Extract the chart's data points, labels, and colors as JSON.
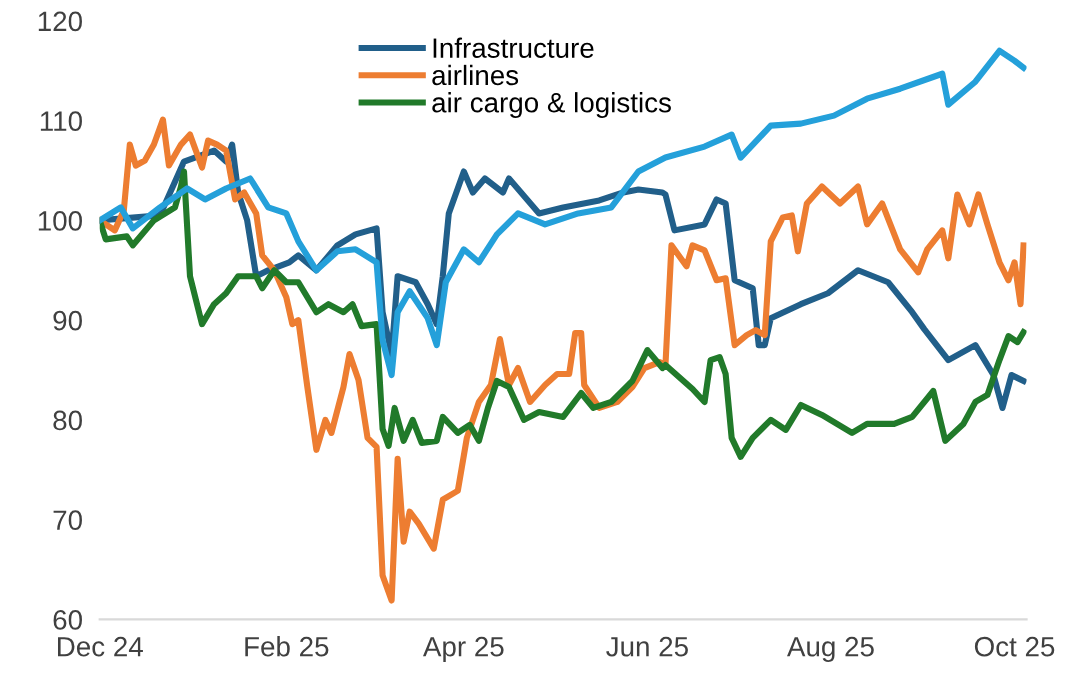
{
  "chart_data": {
    "type": "line",
    "xlim": [
      "2024-12-01",
      "2025-10-05"
    ],
    "xticks": [
      {
        "value": "2024-12-01",
        "label": "Dec 24"
      },
      {
        "value": "2025-02-01",
        "label": "Feb 25"
      },
      {
        "value": "2025-04-01",
        "label": "Apr 25"
      },
      {
        "value": "2025-06-01",
        "label": "Jun 25"
      },
      {
        "value": "2025-08-01",
        "label": "Aug 25"
      },
      {
        "value": "2025-10-01",
        "label": "Oct 25"
      }
    ],
    "ylim": [
      60,
      120
    ],
    "yticks": [
      60,
      70,
      80,
      90,
      100,
      110,
      120
    ],
    "grid": false,
    "legend": "top",
    "marker": "none",
    "line_style": "solid",
    "series": [
      {
        "name": "Infrastructure",
        "color": "#215f8a",
        "x": [
          "2024-12-01",
          "2024-12-21",
          "2024-12-29",
          "2025-01-08",
          "2025-01-12",
          "2025-01-14",
          "2025-01-16",
          "2025-01-19",
          "2025-01-22",
          "2025-01-26",
          "2025-02-02",
          "2025-02-05",
          "2025-02-11",
          "2025-02-18",
          "2025-02-24",
          "2025-03-03",
          "2025-03-05",
          "2025-03-08",
          "2025-03-10",
          "2025-03-16",
          "2025-03-20",
          "2025-03-23",
          "2025-03-25",
          "2025-03-27",
          "2025-04-01",
          "2025-04-04",
          "2025-04-08",
          "2025-04-14",
          "2025-04-16",
          "2025-04-26",
          "2025-05-04",
          "2025-05-16",
          "2025-05-24",
          "2025-05-29",
          "2025-06-06",
          "2025-06-07",
          "2025-06-10",
          "2025-06-20",
          "2025-06-24",
          "2025-06-27",
          "2025-06-30",
          "2025-07-06",
          "2025-07-08",
          "2025-07-10",
          "2025-07-12",
          "2025-07-22",
          "2025-07-31",
          "2025-08-10",
          "2025-08-20",
          "2025-08-28",
          "2025-09-01",
          "2025-09-09",
          "2025-09-18",
          "2025-09-24",
          "2025-09-27",
          "2025-09-30",
          "2025-10-04"
        ],
        "values": [
          100,
          100.5,
          105.9,
          107.0,
          105.9,
          107.6,
          102.8,
          100.0,
          94.4,
          95.0,
          95.8,
          96.5,
          95.0,
          97.5,
          98.6,
          99.2,
          90.8,
          86.6,
          94.4,
          93.8,
          91.6,
          89.6,
          94.4,
          100.7,
          104.9,
          102.8,
          104.2,
          102.8,
          104.2,
          100.7,
          101.3,
          102.0,
          102.8,
          103.1,
          102.8,
          102.6,
          99.0,
          99.6,
          102.1,
          101.7,
          94.0,
          93.2,
          87.5,
          87.5,
          90.2,
          91.6,
          92.7,
          95.0,
          93.8,
          90.8,
          89.1,
          86.0,
          87.5,
          84.5,
          81.2,
          84.5,
          83.9
        ]
      },
      {
        "name": "airlines",
        "color": "#ed7d31",
        "x": [
          "2024-12-01",
          "2024-12-06",
          "2024-12-09",
          "2024-12-11",
          "2024-12-13",
          "2024-12-16",
          "2024-12-19",
          "2024-12-22",
          "2024-12-24",
          "2024-12-28",
          "2024-12-31",
          "2025-01-04",
          "2025-01-06",
          "2025-01-09",
          "2025-01-12",
          "2025-01-15",
          "2025-01-18",
          "2025-01-22",
          "2025-01-24",
          "2025-01-28",
          "2025-02-01",
          "2025-02-03",
          "2025-02-05",
          "2025-02-08",
          "2025-02-11",
          "2025-02-14",
          "2025-02-16",
          "2025-02-20",
          "2025-02-22",
          "2025-02-25",
          "2025-02-28",
          "2025-03-03",
          "2025-03-05",
          "2025-03-08",
          "2025-03-10",
          "2025-03-12",
          "2025-03-14",
          "2025-03-17",
          "2025-03-22",
          "2025-03-25",
          "2025-03-30",
          "2025-04-02",
          "2025-04-06",
          "2025-04-10",
          "2025-04-13",
          "2025-04-16",
          "2025-04-19",
          "2025-04-23",
          "2025-04-28",
          "2025-05-02",
          "2025-05-06",
          "2025-05-08",
          "2025-05-10",
          "2025-05-11",
          "2025-05-16",
          "2025-05-22",
          "2025-05-27",
          "2025-05-31",
          "2025-06-05",
          "2025-06-07",
          "2025-06-09",
          "2025-06-14",
          "2025-06-16",
          "2025-06-20",
          "2025-06-24",
          "2025-06-27",
          "2025-06-30",
          "2025-07-04",
          "2025-07-07",
          "2025-07-10",
          "2025-07-12",
          "2025-07-16",
          "2025-07-19",
          "2025-07-21",
          "2025-07-24",
          "2025-07-29",
          "2025-08-04",
          "2025-08-10",
          "2025-08-13",
          "2025-08-18",
          "2025-08-24",
          "2025-08-30",
          "2025-09-02",
          "2025-09-07",
          "2025-09-09",
          "2025-09-12",
          "2025-09-16",
          "2025-09-19",
          "2025-09-22",
          "2025-09-26",
          "2025-09-29",
          "2025-10-01",
          "2025-10-03",
          "2025-10-04"
        ],
        "values": [
          100,
          99.0,
          101,
          107.6,
          105.5,
          106,
          107.6,
          110.1,
          105.5,
          107.6,
          108.6,
          105.3,
          108,
          107.6,
          107,
          102.1,
          102.8,
          100.7,
          96.5,
          95.0,
          92.3,
          89.6,
          90,
          83.3,
          77.0,
          80,
          78.7,
          83.3,
          86.6,
          84,
          78.2,
          77.3,
          64.4,
          61.9,
          76.1,
          67.8,
          70.8,
          69.6,
          67.1,
          72,
          72.9,
          78.2,
          81.8,
          83.5,
          88.1,
          83.5,
          85.2,
          81.8,
          83.5,
          84.6,
          84.6,
          88.7,
          88.7,
          83.5,
          81.2,
          81.8,
          83.3,
          85.2,
          85.8,
          85.5,
          97.5,
          95.4,
          97.5,
          97,
          94.0,
          94.2,
          87.5,
          88.5,
          89,
          88.5,
          97.9,
          100.3,
          100.5,
          96.9,
          101.7,
          103.4,
          101.7,
          103.4,
          99.6,
          101.7,
          97.1,
          94.8,
          97.1,
          99.0,
          96.2,
          102.6,
          99.6,
          102.6,
          99.6,
          95.8,
          94.0,
          95.8,
          91.6,
          97.5
        ]
      },
      {
        "name": "air cargo & logistics",
        "color": "#217a2a",
        "x": [
          "2024-12-01",
          "2024-12-03",
          "2024-12-10",
          "2024-12-12",
          "2024-12-19",
          "2024-12-26",
          "2024-12-28",
          "2024-12-29",
          "2024-12-31",
          "2025-01-04",
          "2025-01-08",
          "2025-01-12",
          "2025-01-16",
          "2025-01-22",
          "2025-01-24",
          "2025-01-28",
          "2025-02-01",
          "2025-02-05",
          "2025-02-11",
          "2025-02-15",
          "2025-02-20",
          "2025-02-23",
          "2025-02-26",
          "2025-03-03",
          "2025-03-05",
          "2025-03-07",
          "2025-03-09",
          "2025-03-12",
          "2025-03-15",
          "2025-03-18",
          "2025-03-23",
          "2025-03-25",
          "2025-03-30",
          "2025-04-03",
          "2025-04-06",
          "2025-04-09",
          "2025-04-12",
          "2025-04-16",
          "2025-04-21",
          "2025-04-26",
          "2025-05-04",
          "2025-05-10",
          "2025-05-14",
          "2025-05-20",
          "2025-05-27",
          "2025-06-01",
          "2025-06-06",
          "2025-06-07",
          "2025-06-16",
          "2025-06-20",
          "2025-06-22",
          "2025-06-25",
          "2025-06-27",
          "2025-06-29",
          "2025-07-02",
          "2025-07-06",
          "2025-07-12",
          "2025-07-17",
          "2025-07-22",
          "2025-07-29",
          "2025-08-08",
          "2025-08-13",
          "2025-08-22",
          "2025-08-28",
          "2025-09-04",
          "2025-09-08",
          "2025-09-14",
          "2025-09-18",
          "2025-09-22",
          "2025-09-26",
          "2025-09-29",
          "2025-10-02",
          "2025-10-04"
        ],
        "values": [
          100,
          98.1,
          98.4,
          97.5,
          100.0,
          101.3,
          103.4,
          104.9,
          94.4,
          89.6,
          91.6,
          92.7,
          94.4,
          94.4,
          93.2,
          95.0,
          93.8,
          93.8,
          90.8,
          91.6,
          90.8,
          91.6,
          89.4,
          89.6,
          79.1,
          77.4,
          81.2,
          77.9,
          80,
          77.7,
          77.9,
          80.3,
          78.7,
          79.5,
          77.9,
          81.2,
          83.9,
          83.3,
          80,
          80.8,
          80.3,
          82.7,
          81.2,
          81.8,
          83.9,
          87.0,
          85.2,
          85.5,
          83.1,
          81.8,
          86,
          86.3,
          84.6,
          78.2,
          76.3,
          78.2,
          80.0,
          79.0,
          81.5,
          80.5,
          78.7,
          79.6,
          79.6,
          80.3,
          82.9,
          77.9,
          79.6,
          81.8,
          82.5,
          86,
          88.4,
          87.8,
          88.8
        ]
      },
      {
        "color": "#24a0da",
        "x": [
          "2024-12-01",
          "2024-12-08",
          "2024-12-12",
          "2024-12-21",
          "2024-12-30",
          "2025-01-05",
          "2025-01-12",
          "2025-01-20",
          "2025-01-26",
          "2025-02-01",
          "2025-02-05",
          "2025-02-11",
          "2025-02-18",
          "2025-02-24",
          "2025-03-03",
          "2025-03-05",
          "2025-03-08",
          "2025-03-10",
          "2025-03-14",
          "2025-03-20",
          "2025-03-23",
          "2025-03-26",
          "2025-04-01",
          "2025-04-06",
          "2025-04-12",
          "2025-04-19",
          "2025-04-28",
          "2025-05-09",
          "2025-05-20",
          "2025-05-29",
          "2025-06-07",
          "2025-06-20",
          "2025-06-29",
          "2025-07-02",
          "2025-07-12",
          "2025-07-22",
          "2025-08-02",
          "2025-08-13",
          "2025-08-24",
          "2025-09-07",
          "2025-09-09",
          "2025-09-18",
          "2025-09-26",
          "2025-10-01",
          "2025-10-04"
        ],
        "values": [
          100,
          101.3,
          99.2,
          101.3,
          103.2,
          102.1,
          103.2,
          104.2,
          101.3,
          100.7,
          97.9,
          95.0,
          96.9,
          97.1,
          95.8,
          88,
          84.5,
          90.8,
          92.9,
          90.2,
          87.5,
          93.8,
          97.1,
          95.8,
          98.6,
          100.7,
          99.6,
          100.7,
          101.3,
          104.9,
          106.3,
          107.4,
          108.6,
          106.3,
          109.5,
          109.7,
          110.5,
          112.2,
          113.2,
          114.7,
          111.6,
          113.9,
          117.0,
          116.0,
          115.3
        ]
      }
    ]
  }
}
